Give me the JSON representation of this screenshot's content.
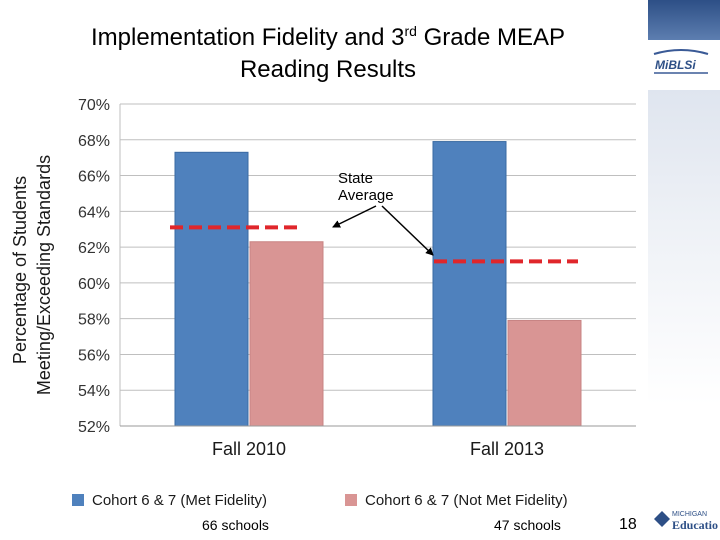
{
  "title": {
    "part1": "Implementation Fidelity and 3",
    "sup": "rd",
    "part2": " Grade MEAP",
    "line2": "Reading Results"
  },
  "chart_data": {
    "type": "bar",
    "categories": [
      "Fall 2010",
      "Fall 2013"
    ],
    "series": [
      {
        "name": "Cohort 6 & 7 (Met Fidelity)",
        "values": [
          67.3,
          67.9
        ],
        "color": "#4f81bd"
      },
      {
        "name": "Cohort 6 & 7 (Not Met Fidelity)",
        "values": [
          62.3,
          57.9
        ],
        "color": "#d99594"
      }
    ],
    "state_average": {
      "values": [
        63.1,
        61.2
      ],
      "color": "#e0262b",
      "label_line1": "State",
      "label_line2": "Average"
    },
    "ylabel_line1": "Percentage of Students",
    "ylabel_line2": "Meeting/Exceeding Standards",
    "ylim": [
      52,
      70
    ],
    "yticks": [
      52,
      54,
      56,
      58,
      60,
      62,
      64,
      66,
      68,
      70
    ],
    "ytick_labels": [
      "52%",
      "54%",
      "56%",
      "58%",
      "60%",
      "62%",
      "64%",
      "66%",
      "68%",
      "70%"
    ],
    "grid": true,
    "legend_position": "bottom",
    "school_counts": [
      "66 schools",
      "47 schools"
    ]
  },
  "logos": {
    "marsi": "MiBLSi",
    "michigan": "MICHIGAN",
    "education": "Education"
  },
  "page_number": "18"
}
